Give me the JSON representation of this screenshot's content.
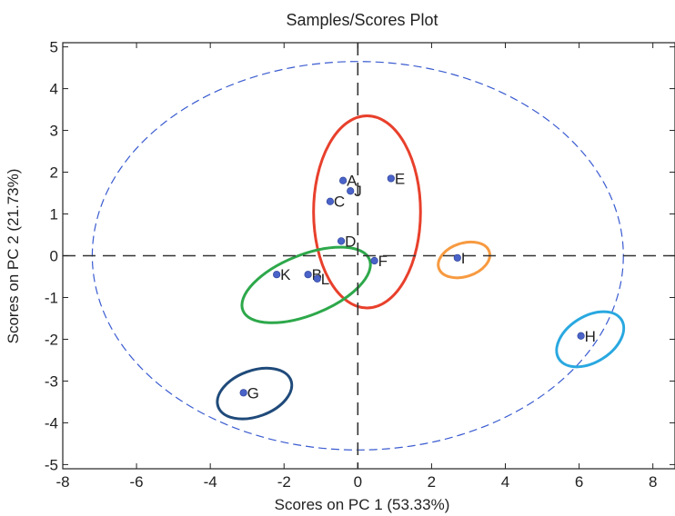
{
  "chart_data": {
    "type": "scatter",
    "title": "Samples/Scores Plot",
    "xlabel": "Scores on PC 1 (53.33%)",
    "ylabel": "Scores on PC 2 (21.73%)",
    "xlim": [
      -8,
      8.6
    ],
    "ylim": [
      -5.1,
      5.1
    ],
    "xticks": [
      -8,
      -6,
      -4,
      -2,
      0,
      2,
      4,
      6,
      8
    ],
    "yticks": [
      -5,
      -4,
      -3,
      -2,
      -1,
      0,
      1,
      2,
      3,
      4,
      5
    ],
    "grid": false,
    "legend": "none",
    "points": [
      {
        "label": "A",
        "x": -0.4,
        "y": 1.8
      },
      {
        "label": "J",
        "x": -0.2,
        "y": 1.55
      },
      {
        "label": "C",
        "x": -0.75,
        "y": 1.3
      },
      {
        "label": "E",
        "x": 0.9,
        "y": 1.85
      },
      {
        "label": "D",
        "x": -0.45,
        "y": 0.35
      },
      {
        "label": "F",
        "x": 0.45,
        "y": -0.12
      },
      {
        "label": "K",
        "x": -2.2,
        "y": -0.45
      },
      {
        "label": "B",
        "x": -1.35,
        "y": -0.45
      },
      {
        "label": "L",
        "x": -1.1,
        "y": -0.55
      },
      {
        "label": "I",
        "x": 2.7,
        "y": -0.05
      },
      {
        "label": "H",
        "x": 6.05,
        "y": -1.92
      },
      {
        "label": "G",
        "x": -3.1,
        "y": -3.28
      }
    ],
    "confidence_ellipse": {
      "cx": 0,
      "cy": 0,
      "rx": 7.2,
      "ry": 4.65,
      "color": "#3a5bd0",
      "style": "dashed"
    },
    "group_ellipses": [
      {
        "members": [
          "A",
          "J",
          "C",
          "E",
          "D",
          "F"
        ],
        "cx": 0.25,
        "cy": 1.05,
        "rx": 1.45,
        "ry": 2.3,
        "angle": 0,
        "color": "#e8402c"
      },
      {
        "members": [
          "K",
          "B",
          "L"
        ],
        "cx": -1.4,
        "cy": -0.7,
        "rx": 1.85,
        "ry": 0.72,
        "angle": -22,
        "color": "#2da84a"
      },
      {
        "members": [
          "I"
        ],
        "cx": 2.88,
        "cy": -0.1,
        "rx": 0.72,
        "ry": 0.4,
        "angle": -18,
        "color": "#f79a40"
      },
      {
        "members": [
          "H"
        ],
        "cx": 6.3,
        "cy": -2.0,
        "rx": 1.0,
        "ry": 0.55,
        "angle": -32,
        "color": "#29a8e0"
      },
      {
        "members": [
          "G"
        ],
        "cx": -2.8,
        "cy": -3.3,
        "rx": 1.05,
        "ry": 0.55,
        "angle": -20,
        "color": "#1f4a7a"
      }
    ],
    "point_color": "#4a63c8"
  }
}
